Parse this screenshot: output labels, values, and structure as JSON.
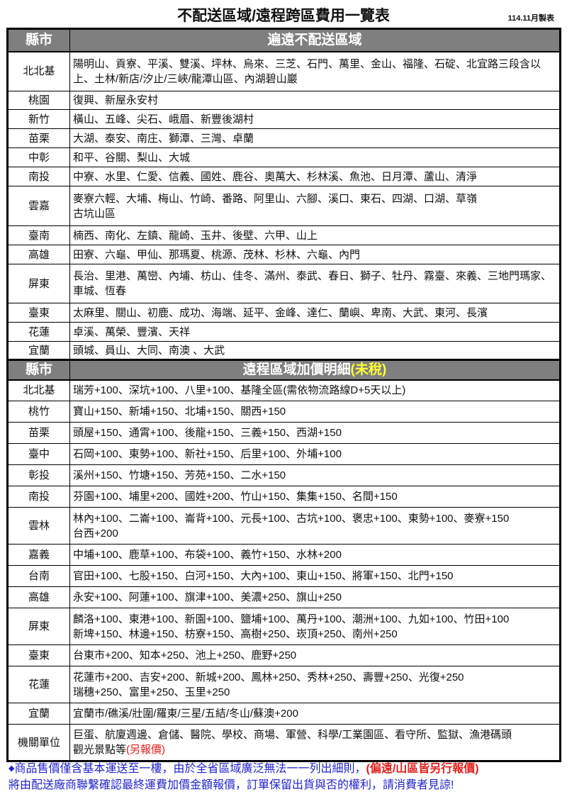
{
  "title": "不配送區域/遠程跨區費用一覽表",
  "made_date": "114.11月製表",
  "section1": {
    "col_header": "縣市",
    "header": "遍遠不配送區域",
    "rows": [
      {
        "city": "北北基",
        "areas": "陽明山、貢寮、平溪、雙溪、坪林、烏來、三芝、石門、萬里、金山、福隆、石碇、北宜路三段含以上、土林/新店/汐止/三峽/龍潭山區、內湖碧山巖"
      },
      {
        "city": "桃園",
        "areas": "復興、新屋永安村"
      },
      {
        "city": "新竹",
        "areas": "橫山、五峰、尖石、峨眉、新豐後湖村"
      },
      {
        "city": "苗栗",
        "areas": "大湖、泰安、南庄、獅潭、三灣、卓蘭"
      },
      {
        "city": "中彰",
        "areas": "和平、谷關、梨山、大城"
      },
      {
        "city": "南投",
        "areas": "中寮、水里、仁愛、信義、國姓、鹿谷、奧萬大、杉林溪、魚池、日月潭、蘆山、清淨"
      },
      {
        "city": "雲嘉",
        "areas": "麥寮六輕、大埔、梅山、竹崎、番路、阿里山、六腳、溪口、東石、四湖、口湖、草嶺\n古坑山區"
      },
      {
        "city": "臺南",
        "areas": "楠西、南化、左鎮、龍崎、玉井、後壁、六甲、山上"
      },
      {
        "city": "高雄",
        "areas": "田寮、六龜、甲仙、那瑪夏、桃源、茂林、杉林、六龜、內門"
      },
      {
        "city": "屏東",
        "areas": "長治、里港、萬巒、內埔、枋山、佳冬、滿州、泰武、春日、獅子、牡丹、霧臺、來義、三地門瑪家、車城、恆春"
      },
      {
        "city": "臺東",
        "areas": "太麻里、關山、初鹿、成功、海端、延平、金峰、達仁、蘭嶼、卑南、大武、東河、長濱"
      },
      {
        "city": "花蓮",
        "areas": "卓溪、萬榮、豐濱、天祥"
      },
      {
        "city": "宜蘭",
        "areas": "頭城、員山、大同、南澳 、大武"
      }
    ]
  },
  "section2": {
    "col_header": "縣市",
    "header": "遠程區域加價明細",
    "header_note": "(未稅)",
    "rows": [
      {
        "city": "北北基",
        "areas": "瑞芳+100、深坑+100、八里+100、基隆全區(需依物流路線D+5天以上)"
      },
      {
        "city": "桃竹",
        "areas": "寶山+150、新埔+150、北埔+150、關西+150"
      },
      {
        "city": "苗栗",
        "areas": "頭屋+150、通霄+100、後龍+150、三義+150、西湖+150"
      },
      {
        "city": "臺中",
        "areas": "石岡+100、東勢+100、新社+150、后里+100、外埔+100"
      },
      {
        "city": "彰投",
        "areas": "溪州+150、竹塘+150、芳苑+150、二水+150"
      },
      {
        "city": "南投",
        "areas": "芬園+100、埔里+200、國姓+200、竹山+150、集集+150、名間+150"
      },
      {
        "city": "雲林",
        "areas": "林內+100、二崙+100、崙背+100、元長+100、古坑+100、褒忠+100、東勢+100、麥寮+150\n台西+200"
      },
      {
        "city": "嘉義",
        "areas": "中埔+100、鹿草+100、布袋+100、義竹+150、水林+200"
      },
      {
        "city": "台南",
        "areas": "官田+100、七股+150、白河+150、大內+100、東山+150、將軍+150、北門+150"
      },
      {
        "city": "高雄",
        "areas": "永安+100、阿蓮+100、旗津+100、美濃+250、旗山+250"
      },
      {
        "city": "屏東",
        "areas": "麟洛+100、東港+100、新園+100、鹽埔+100、萬丹+100、潮洲+100、九如+100、竹田+100\n新埤+150、林邊+150、枋寮+150、高樹+250、崁頂+250、南州+250"
      },
      {
        "city": "臺東",
        "areas": "台東市+200、知本+250、池上+250、鹿野+250"
      },
      {
        "city": "花蓮",
        "areas": "花蓮市+200、吉安+200、新城+200、鳳林+250、秀林+250、壽豐+250、光復+250\n瑞穗+250、富里+250、玉里+250"
      },
      {
        "city": "宜蘭",
        "areas": "宜蘭市/礁溪/壯圍/羅東/三星/五結/冬山/蘇澳+200"
      },
      {
        "city": "機關單位",
        "areas": "巨蛋、航廈週邊、倉儲、醫院、學校、商場、軍營、科學/工業園區、看守所、監獄、漁港碼頭\n觀光景點等",
        "note": "(另報價)"
      }
    ]
  },
  "footer": {
    "bullet_icon": "diamond-icon",
    "line1": "商品售價僅含基本運送至一樓，由於全省區域廣泛無法一一列出細則，",
    "line1_highlight": "(偏遠/山區皆另行報價)",
    "line2": "將由配送廠商聯繫確認最終運費加價金額報價，訂單保留出貨與否的權利，請消費者見諒!"
  },
  "colors": {
    "header_bg": "#7f7f7f",
    "note_yellow": "#ffff33",
    "red": "#e0201c",
    "footer_blue": "#2222cc"
  }
}
